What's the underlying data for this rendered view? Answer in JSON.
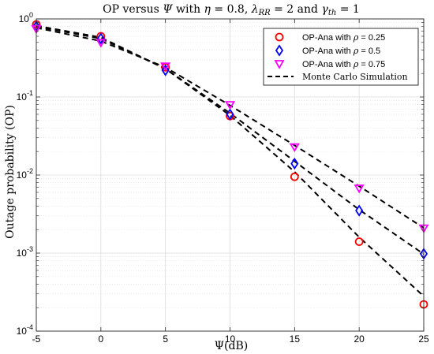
{
  "chart_data": {
    "type": "line",
    "title_parts": {
      "t1": "OP versus ",
      "t2": "Ψ",
      "t3": " with ",
      "t4": "η",
      "t5": " = 0.8, ",
      "t6": "λ",
      "t7": "RR",
      "t8": " = 2 and ",
      "t9": "γ",
      "t10": "th",
      "t11": " = 1"
    },
    "xlabel": "Ψ(dB)",
    "ylabel": "Outage probability (OP)",
    "xlim": [
      -5,
      25
    ],
    "ylim": [
      0.0001,
      1
    ],
    "yscale": "log",
    "grid": true,
    "legend_position": "top-right",
    "x_ticks": [
      "-5",
      "0",
      "5",
      "10",
      "15",
      "20",
      "25"
    ],
    "y_ticks": [
      {
        "base": "10",
        "exp": "0"
      },
      {
        "base": "10",
        "exp": "-1"
      },
      {
        "base": "10",
        "exp": "-2"
      },
      {
        "base": "10",
        "exp": "-3"
      },
      {
        "base": "10",
        "exp": "-4"
      }
    ],
    "x": [
      -5,
      0,
      5,
      10,
      15,
      20,
      25
    ],
    "series": [
      {
        "legend_prefix": "OP-Ana with ",
        "legend_sym": "ρ",
        "legend_suffix": " = 0.25",
        "marker": "circle",
        "color": "#ff0000",
        "values": [
          0.85,
          0.6,
          0.24,
          0.057,
          0.0095,
          0.0014,
          0.00022
        ],
        "sim": [
          0.82,
          0.58,
          0.23,
          0.058,
          0.011,
          0.0016,
          0.00028
        ]
      },
      {
        "legend_prefix": "OP-Ana with ",
        "legend_sym": "ρ",
        "legend_suffix": " = 0.5",
        "marker": "diamond",
        "color": "#0000ff",
        "values": [
          0.8,
          0.56,
          0.22,
          0.06,
          0.014,
          0.0035,
          0.00098
        ],
        "sim": [
          0.8,
          0.56,
          0.23,
          0.062,
          0.015,
          0.0036,
          0.00097
        ]
      },
      {
        "legend_prefix": "OP-Ana with ",
        "legend_sym": "ρ",
        "legend_suffix": " = 0.75",
        "marker": "triangle-down",
        "color": "#ff00ff",
        "values": [
          0.75,
          0.5,
          0.25,
          0.08,
          0.023,
          0.0068,
          0.0021
        ],
        "sim": [
          0.77,
          0.52,
          0.24,
          0.078,
          0.024,
          0.0072,
          0.0021
        ]
      }
    ],
    "sim_legend": "Monte Carlo Simulation",
    "sim_style": {
      "color": "#000000",
      "dash": "dashed"
    }
  }
}
